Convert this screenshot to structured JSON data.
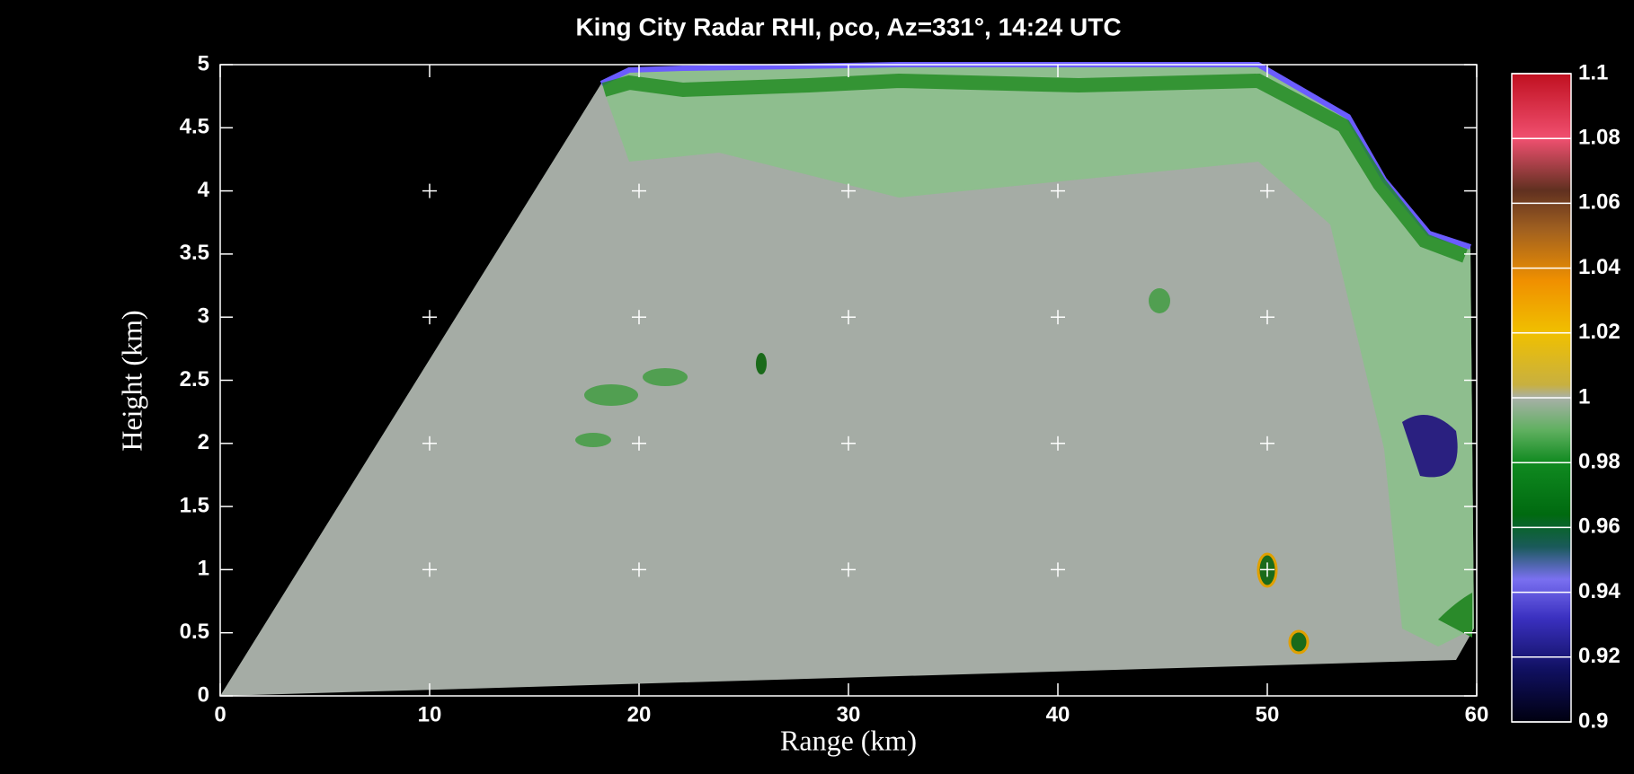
{
  "chart_data": {
    "type": "rhi",
    "title": "King City Radar RHI, ρco, Az=331°, 14:24 UTC",
    "x_label": "Range (km)",
    "y_label": "Height (km)",
    "xlim": [
      0,
      60
    ],
    "xticks": [
      0,
      10,
      20,
      30,
      40,
      50,
      60
    ],
    "ylim": [
      0,
      5
    ],
    "yticks": [
      0,
      0.5,
      1,
      1.5,
      2,
      2.5,
      3,
      3.5,
      4,
      4.5,
      5
    ],
    "colorbar_lim": [
      0.9,
      1.1
    ],
    "colorbar_ticks": [
      0.9,
      0.92,
      0.94,
      0.96,
      0.98,
      1,
      1.02,
      1.04,
      1.06,
      1.08,
      1.1
    ],
    "grid": true
  }
}
